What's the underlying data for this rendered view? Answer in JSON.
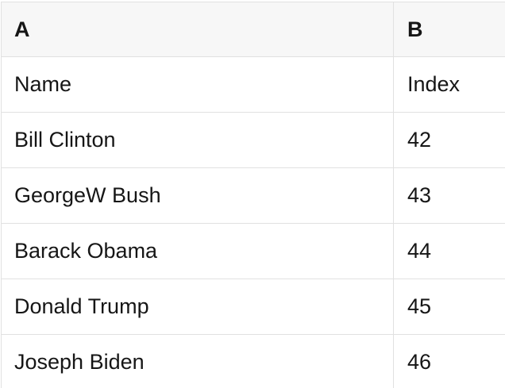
{
  "table": {
    "columns": [
      {
        "label": "A"
      },
      {
        "label": "B"
      }
    ],
    "rows": [
      {
        "a": "Name",
        "b": "Index"
      },
      {
        "a": "Bill Clinton",
        "b": "42"
      },
      {
        "a": "GeorgeW Bush",
        "b": "43"
      },
      {
        "a": "Barack Obama",
        "b": "44"
      },
      {
        "a": "Donald Trump",
        "b": "45"
      },
      {
        "a": "Joseph Biden",
        "b": "46"
      }
    ]
  },
  "colors": {
    "page_bg": "#ffffff",
    "header_bg": "#f7f7f7",
    "row_bg": "#ffffff",
    "border": "#e1e1e1",
    "text": "#161616"
  }
}
